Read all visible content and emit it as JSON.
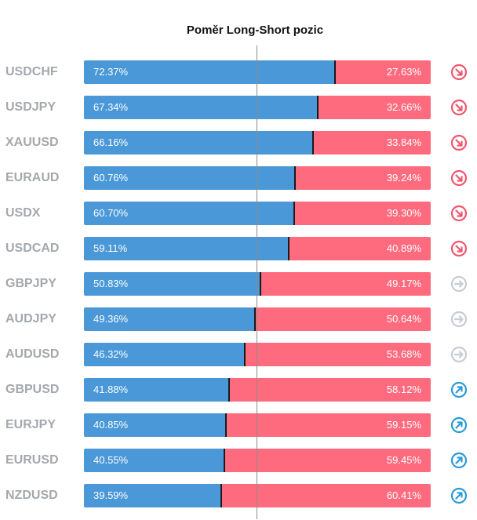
{
  "chart_data": {
    "type": "bar",
    "title": "Poměr Long-Short pozic",
    "categories": [
      "USDCHF",
      "USDJPY",
      "XAUUSD",
      "EURAUD",
      "USDX",
      "USDCAD",
      "GBPJPY",
      "AUDJPY",
      "AUDUSD",
      "GBPUSD",
      "EURJPY",
      "EURUSD",
      "NZDUSD"
    ],
    "series": [
      {
        "values": [
          72.37,
          67.34,
          66.16,
          60.76,
          60.7,
          59.11,
          50.83,
          49.36,
          46.32,
          41.88,
          40.85,
          40.55,
          39.59
        ]
      },
      {
        "values": [
          27.63,
          32.66,
          33.84,
          39.24,
          39.3,
          40.89,
          49.17,
          50.64,
          53.68,
          58.12,
          59.15,
          59.45,
          60.41
        ]
      }
    ],
    "long_labels": [
      "72.37%",
      "67.34%",
      "66.16%",
      "60.76%",
      "60.70%",
      "59.11%",
      "50.83%",
      "49.36%",
      "46.32%",
      "41.88%",
      "40.85%",
      "40.55%",
      "39.59%"
    ],
    "short_labels": [
      "27.63%",
      "32.66%",
      "33.84%",
      "39.24%",
      "39.30%",
      "40.89%",
      "49.17%",
      "50.64%",
      "53.68%",
      "58.12%",
      "59.15%",
      "59.45%",
      "60.41%"
    ],
    "ylim": [
      0,
      100
    ],
    "colors": {
      "long": "#4a98d8",
      "short": "#ff6b7e",
      "separator": "#1a1a1a"
    },
    "sentiment_icons": [
      "arrow-down-right-icon",
      "arrow-down-right-icon",
      "arrow-down-right-icon",
      "arrow-down-right-icon",
      "arrow-down-right-icon",
      "arrow-down-right-icon",
      "arrow-right-icon",
      "arrow-right-icon",
      "arrow-right-icon",
      "arrow-up-right-icon",
      "arrow-up-right-icon",
      "arrow-up-right-icon",
      "arrow-up-right-icon"
    ],
    "icon_colors": {
      "down": "#f0566e",
      "neutral": "#c6ccd4",
      "up": "#2a9bd6"
    }
  }
}
